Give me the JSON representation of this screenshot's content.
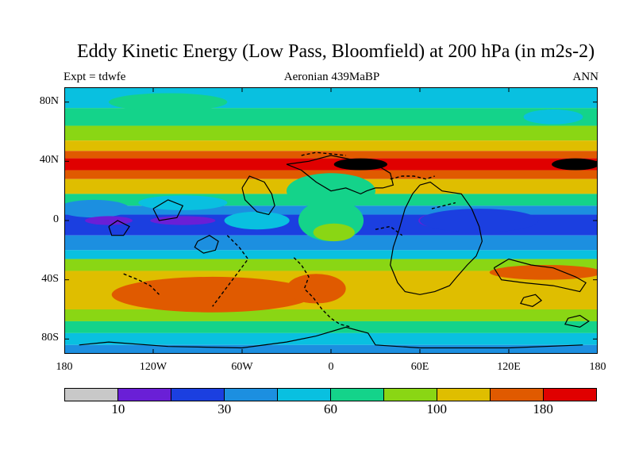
{
  "map": {
    "title": "Eddy Kinetic Energy (Low Pass, Bloomfield) at 200 hPa (in m2s-2)",
    "experiment_label": "Expt = tdwfe",
    "period_label": "Aeronian 439MaBP",
    "season_label": "ANN",
    "lat_ticks": [
      {
        "label": "80N",
        "lat": 80
      },
      {
        "label": "40N",
        "lat": 40
      },
      {
        "label": "0",
        "lat": 0
      },
      {
        "label": "40S",
        "lat": -40
      },
      {
        "label": "80S",
        "lat": -80
      }
    ],
    "lon_ticks": [
      {
        "label": "180",
        "lon": -180
      },
      {
        "label": "120W",
        "lon": -120
      },
      {
        "label": "60W",
        "lon": -60
      },
      {
        "label": "0",
        "lon": 0
      },
      {
        "label": "60E",
        "lon": 60
      },
      {
        "label": "120E",
        "lon": 120
      },
      {
        "label": "180",
        "lon": 180
      }
    ],
    "lon_range": [
      -180,
      180
    ],
    "lat_range": [
      -90,
      90
    ],
    "field_bands": [
      {
        "lat_from": 90,
        "lat_to": 76,
        "level": 4
      },
      {
        "lat_from": 76,
        "lat_to": 64,
        "level": 5
      },
      {
        "lat_from": 64,
        "lat_to": 54,
        "level": 6
      },
      {
        "lat_from": 54,
        "lat_to": 47,
        "level": 7
      },
      {
        "lat_from": 47,
        "lat_to": 42,
        "level": 8
      },
      {
        "lat_from": 42,
        "lat_to": 34,
        "level": 9
      },
      {
        "lat_from": 34,
        "lat_to": 28,
        "level": 8
      },
      {
        "lat_from": 28,
        "lat_to": 18,
        "level": 7
      },
      {
        "lat_from": 18,
        "lat_to": 10,
        "level": 5
      },
      {
        "lat_from": 10,
        "lat_to": 4,
        "level": 3
      },
      {
        "lat_from": 4,
        "lat_to": -10,
        "level": 2
      },
      {
        "lat_from": -10,
        "lat_to": -20,
        "level": 3
      },
      {
        "lat_from": -20,
        "lat_to": -26,
        "level": 4
      },
      {
        "lat_from": -26,
        "lat_to": -34,
        "level": 6
      },
      {
        "lat_from": -34,
        "lat_to": -60,
        "level": 7
      },
      {
        "lat_from": -60,
        "lat_to": -68,
        "level": 6
      },
      {
        "lat_from": -68,
        "lat_to": -76,
        "level": 5
      },
      {
        "lat_from": -76,
        "lat_to": -84,
        "level": 4
      },
      {
        "lat_from": -84,
        "lat_to": -90,
        "level": 3
      }
    ],
    "field_blobs": [
      {
        "lon": -50,
        "lat": 0,
        "rlon": 22,
        "rlat": 6,
        "level": 4
      },
      {
        "lon": 0,
        "lat": 0,
        "rlon": 22,
        "rlat": 14,
        "level": 5
      },
      {
        "lon": 2,
        "lat": -8,
        "rlon": 14,
        "rlat": 6,
        "level": 6
      },
      {
        "lon": 0,
        "lat": 20,
        "rlon": 30,
        "rlat": 12,
        "level": 5
      },
      {
        "lon": -160,
        "lat": 8,
        "rlon": 24,
        "rlat": 6,
        "level": 3
      },
      {
        "lon": -100,
        "lat": 12,
        "rlon": 30,
        "rlat": 5,
        "level": 4
      },
      {
        "lon": -150,
        "lat": 0,
        "rlon": 16,
        "rlat": 3,
        "level": 1
      },
      {
        "lon": -100,
        "lat": 0,
        "rlon": 22,
        "rlat": 3,
        "level": 1
      },
      {
        "lon": 75,
        "lat": 0,
        "rlon": 16,
        "rlat": 5,
        "level": 1
      },
      {
        "lon": 100,
        "lat": 0,
        "rlon": 40,
        "rlat": 8,
        "level": 2
      },
      {
        "lon": -80,
        "lat": -50,
        "rlon": 68,
        "rlat": 12,
        "level": 8
      },
      {
        "lon": -10,
        "lat": -46,
        "rlon": 20,
        "rlat": 10,
        "level": 8
      },
      {
        "lon": 145,
        "lat": -35,
        "rlon": 38,
        "rlat": 5,
        "level": 8
      },
      {
        "lon": 165,
        "lat": 38,
        "rlon": 16,
        "rlat": 4,
        "level": 10
      },
      {
        "lon": 20,
        "lat": 38,
        "rlon": 18,
        "rlat": 4,
        "level": 10
      },
      {
        "lon": -110,
        "lat": 80,
        "rlon": 40,
        "rlat": 6,
        "level": 5
      },
      {
        "lon": 150,
        "lat": 70,
        "rlon": 20,
        "rlat": 5,
        "level": 4
      }
    ],
    "coastlines": [
      [
        [
          -30,
          38
        ],
        [
          -15,
          40
        ],
        [
          0,
          44
        ],
        [
          10,
          42
        ],
        [
          20,
          40
        ],
        [
          30,
          38
        ],
        [
          40,
          32
        ],
        [
          42,
          24
        ],
        [
          35,
          22
        ],
        [
          30,
          22
        ],
        [
          24,
          20
        ],
        [
          20,
          18
        ],
        [
          10,
          22
        ],
        [
          0,
          20
        ],
        [
          -10,
          26
        ],
        [
          -20,
          34
        ],
        [
          -30,
          38
        ]
      ],
      [
        [
          -60,
          22
        ],
        [
          -55,
          30
        ],
        [
          -45,
          26
        ],
        [
          -40,
          18
        ],
        [
          -38,
          10
        ],
        [
          -42,
          4
        ],
        [
          -50,
          6
        ],
        [
          -58,
          14
        ],
        [
          -60,
          22
        ]
      ],
      [
        [
          60,
          24
        ],
        [
          67,
          26
        ],
        [
          75,
          20
        ],
        [
          88,
          18
        ],
        [
          95,
          8
        ],
        [
          100,
          -4
        ],
        [
          102,
          -14
        ],
        [
          98,
          -24
        ],
        [
          92,
          -30
        ],
        [
          85,
          -38
        ],
        [
          80,
          -44
        ],
        [
          70,
          -48
        ],
        [
          60,
          -50
        ],
        [
          50,
          -48
        ],
        [
          45,
          -42
        ],
        [
          40,
          -30
        ],
        [
          42,
          -18
        ],
        [
          46,
          -6
        ],
        [
          50,
          8
        ],
        [
          55,
          18
        ],
        [
          60,
          24
        ]
      ],
      [
        [
          110,
          -32
        ],
        [
          120,
          -26
        ],
        [
          135,
          -30
        ],
        [
          150,
          -32
        ],
        [
          165,
          -38
        ],
        [
          172,
          -42
        ],
        [
          168,
          -48
        ],
        [
          150,
          -44
        ],
        [
          130,
          -42
        ],
        [
          115,
          -40
        ],
        [
          110,
          -32
        ]
      ],
      [
        [
          -170,
          -84
        ],
        [
          -150,
          -82
        ],
        [
          -110,
          -85
        ],
        [
          -60,
          -86
        ],
        [
          -30,
          -82
        ],
        [
          -10,
          -78
        ],
        [
          10,
          -72
        ],
        [
          25,
          -76
        ],
        [
          30,
          -84
        ],
        [
          60,
          -86
        ],
        [
          120,
          -86
        ],
        [
          170,
          -84
        ]
      ],
      [
        [
          -90,
          -14
        ],
        [
          -82,
          -10
        ],
        [
          -76,
          -14
        ],
        [
          -78,
          -20
        ],
        [
          -86,
          -22
        ],
        [
          -92,
          -18
        ],
        [
          -90,
          -14
        ]
      ],
      [
        [
          -120,
          8
        ],
        [
          -110,
          14
        ],
        [
          -100,
          10
        ],
        [
          -104,
          2
        ],
        [
          -116,
          0
        ],
        [
          -120,
          8
        ]
      ],
      [
        [
          -150,
          -4
        ],
        [
          -144,
          0
        ],
        [
          -136,
          -4
        ],
        [
          -140,
          -10
        ],
        [
          -148,
          -10
        ],
        [
          -150,
          -4
        ]
      ],
      [
        [
          130,
          -52
        ],
        [
          138,
          -50
        ],
        [
          142,
          -54
        ],
        [
          136,
          -58
        ],
        [
          128,
          -56
        ],
        [
          130,
          -52
        ]
      ],
      [
        [
          160,
          -66
        ],
        [
          168,
          -64
        ],
        [
          174,
          -68
        ],
        [
          168,
          -72
        ],
        [
          158,
          -70
        ],
        [
          160,
          -66
        ]
      ]
    ],
    "dashed_lines": [
      [
        [
          -25,
          -25
        ],
        [
          -20,
          -30
        ],
        [
          -15,
          -38
        ],
        [
          -18,
          -46
        ],
        [
          -12,
          -52
        ],
        [
          -6,
          -60
        ],
        [
          0,
          -66
        ],
        [
          6,
          -70
        ],
        [
          14,
          -72
        ]
      ],
      [
        [
          -70,
          -10
        ],
        [
          -62,
          -18
        ],
        [
          -56,
          -26
        ],
        [
          -62,
          -34
        ],
        [
          -68,
          -42
        ],
        [
          -74,
          -50
        ],
        [
          -80,
          -58
        ]
      ],
      [
        [
          -140,
          -36
        ],
        [
          -130,
          -40
        ],
        [
          -122,
          -44
        ],
        [
          -116,
          -50
        ]
      ],
      [
        [
          30,
          -6
        ],
        [
          40,
          -4
        ],
        [
          48,
          -10
        ]
      ],
      [
        [
          68,
          8
        ],
        [
          76,
          10
        ],
        [
          84,
          12
        ]
      ],
      [
        [
          -20,
          44
        ],
        [
          -10,
          46
        ],
        [
          0,
          45
        ],
        [
          10,
          44
        ]
      ],
      [
        [
          40,
          28
        ],
        [
          48,
          30
        ],
        [
          56,
          30
        ],
        [
          64,
          28
        ],
        [
          70,
          30
        ]
      ]
    ],
    "colorbar": {
      "colors": [
        "#c8c8c8",
        "#6a1fd6",
        "#1b3fe0",
        "#1c8fe0",
        "#09c0e0",
        "#14d38a",
        "#8ad614",
        "#dfbe00",
        "#e05a00",
        "#e00000"
      ],
      "labels": [
        {
          "text": "10",
          "index": 1
        },
        {
          "text": "30",
          "index": 3
        },
        {
          "text": "60",
          "index": 5
        },
        {
          "text": "100",
          "index": 7
        },
        {
          "text": "180",
          "index": 9
        }
      ]
    }
  }
}
